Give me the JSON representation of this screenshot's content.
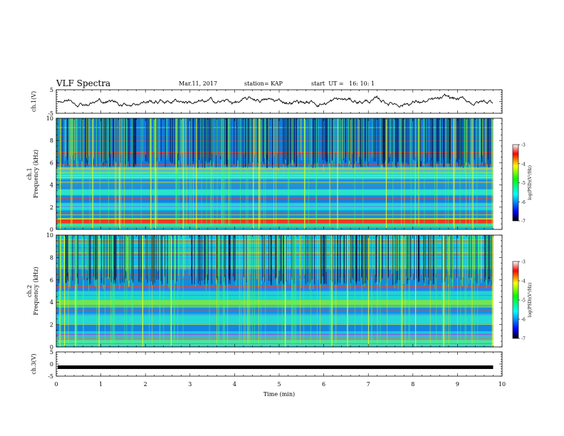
{
  "header": {
    "title": "VLF Spectra",
    "date": "Mar.11, 2017",
    "station": "station= KAP",
    "start": "start  UT =   16: 10: 1"
  },
  "chart_data": {
    "type": "heatmap",
    "x_axis": {
      "label": "Time  (min)",
      "range": [
        0,
        10
      ],
      "ticks": [
        "0",
        "1",
        "2",
        "3",
        "4",
        "5",
        "6",
        "7",
        "8",
        "9",
        "10"
      ]
    },
    "panels": [
      {
        "id": "ch1-wave",
        "type": "line",
        "ylabel": "ch.1(V)",
        "ylim": [
          -5,
          5
        ],
        "ticks": [
          "5",
          "-5"
        ]
      },
      {
        "id": "ch1-spec",
        "type": "heatmap",
        "ylabel": "ch.1\nFrequency  (kHz)",
        "ylim": [
          0,
          10
        ],
        "ticks": [
          "0",
          "2",
          "4",
          "6",
          "8",
          "10"
        ],
        "colorbar": {
          "label": "log(PSD)(V²/Hz)",
          "range": [
            -7,
            -3
          ],
          "ticks": [
            "-3",
            "-4",
            "-5",
            "-6",
            "-7"
          ]
        }
      },
      {
        "id": "ch2-spec",
        "type": "heatmap",
        "ylabel": "ch.2\nFrequency  (kHz)",
        "ylim": [
          0,
          10
        ],
        "ticks": [
          "0",
          "2",
          "4",
          "6",
          "8",
          "10"
        ],
        "colorbar": {
          "label": "log(PSD)(V²/Hz)",
          "range": [
            -7,
            -3
          ],
          "ticks": [
            "-3",
            "-4",
            "-5",
            "-6",
            "-7"
          ]
        }
      },
      {
        "id": "ch3-wave",
        "type": "line",
        "ylabel": "ch.3(V)",
        "ylim": [
          -5,
          5
        ],
        "ticks": [
          "5",
          "0",
          "-5"
        ],
        "level": -1.3
      }
    ],
    "data_end_min": 9.8
  }
}
